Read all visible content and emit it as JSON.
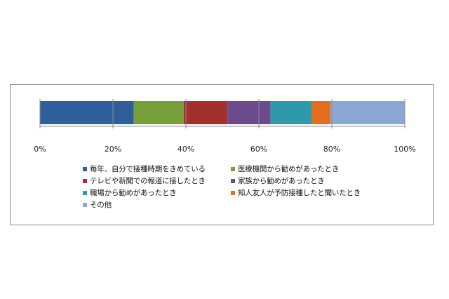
{
  "chart_data": {
    "type": "bar",
    "orientation": "horizontal",
    "stacked": true,
    "percent": true,
    "title": "",
    "xlabel": "",
    "ylabel": "",
    "xlim": [
      0,
      100
    ],
    "tick_labels": [
      "0%",
      "20%",
      "40%",
      "60%",
      "80%",
      "100%"
    ],
    "grid": false,
    "legend_position": "bottom",
    "series": [
      {
        "name": "毎年、自分で接種時期をきめている",
        "value": 25.7,
        "color": "#2e5f9b"
      },
      {
        "name": "医療機関から勧めがあったとき",
        "value": 13.7,
        "color": "#77a03b"
      },
      {
        "name": "テレビや新聞での報道に接したとき",
        "value": 12.0,
        "color": "#a3302f"
      },
      {
        "name": "家族から勧めがあったとき",
        "value": 11.8,
        "color": "#6b4a8d"
      },
      {
        "name": "職場から勧めがあったとき",
        "value": 11.3,
        "color": "#2f98ab"
      },
      {
        "name": "知人友人が予防接種したと聞いたとき",
        "value": 5.1,
        "color": "#e36f1e"
      },
      {
        "name": "その他",
        "value": 20.4,
        "color": "#8aa7d4"
      }
    ]
  }
}
